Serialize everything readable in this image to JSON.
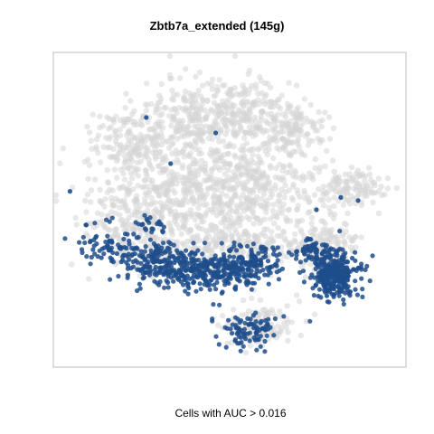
{
  "chart_data": {
    "type": "scatter",
    "title": "Zbtb7a_extended (145g)",
    "xlabel": "Cells with AUC > 0.016",
    "ylabel": "",
    "grid": false,
    "legend": "none",
    "colors": {
      "background_cells": "#d6d6d6",
      "auc_cells": "#1f4e8c",
      "frame": "#bdbdbd"
    },
    "series": [
      {
        "role": "background",
        "marker_color": "#d6d6d6",
        "clusters": [
          {
            "cx": 0.22,
            "cy": 0.28,
            "sx": 0.06,
            "sy": 0.06,
            "n": 180
          },
          {
            "cx": 0.4,
            "cy": 0.2,
            "sx": 0.07,
            "sy": 0.06,
            "n": 240
          },
          {
            "cx": 0.55,
            "cy": 0.18,
            "sx": 0.06,
            "sy": 0.05,
            "n": 160
          },
          {
            "cx": 0.68,
            "cy": 0.23,
            "sx": 0.05,
            "sy": 0.05,
            "n": 140
          },
          {
            "cx": 0.36,
            "cy": 0.44,
            "sx": 0.12,
            "sy": 0.08,
            "n": 420
          },
          {
            "cx": 0.58,
            "cy": 0.42,
            "sx": 0.1,
            "sy": 0.08,
            "n": 320
          },
          {
            "cx": 0.2,
            "cy": 0.55,
            "sx": 0.06,
            "sy": 0.08,
            "n": 150
          },
          {
            "cx": 0.5,
            "cy": 0.62,
            "sx": 0.12,
            "sy": 0.05,
            "n": 300
          },
          {
            "cx": 0.85,
            "cy": 0.43,
            "sx": 0.05,
            "sy": 0.03,
            "n": 110
          },
          {
            "cx": 0.78,
            "cy": 0.62,
            "sx": 0.04,
            "sy": 0.05,
            "n": 120
          },
          {
            "cx": 0.58,
            "cy": 0.88,
            "sx": 0.05,
            "sy": 0.04,
            "n": 120
          }
        ]
      },
      {
        "role": "AUC > 0.016",
        "marker_color": "#1f4e8c",
        "clusters": [
          {
            "cx": 0.42,
            "cy": 0.7,
            "sx": 0.09,
            "sy": 0.03,
            "n": 360
          },
          {
            "cx": 0.28,
            "cy": 0.65,
            "sx": 0.05,
            "sy": 0.03,
            "n": 110
          },
          {
            "cx": 0.14,
            "cy": 0.62,
            "sx": 0.04,
            "sy": 0.03,
            "n": 60
          },
          {
            "cx": 0.58,
            "cy": 0.66,
            "sx": 0.04,
            "sy": 0.03,
            "n": 90
          },
          {
            "cx": 0.8,
            "cy": 0.71,
            "sx": 0.035,
            "sy": 0.035,
            "n": 320
          },
          {
            "cx": 0.74,
            "cy": 0.63,
            "sx": 0.03,
            "sy": 0.02,
            "n": 60
          },
          {
            "cx": 0.56,
            "cy": 0.89,
            "sx": 0.04,
            "sy": 0.03,
            "n": 90
          },
          {
            "cx": 0.24,
            "cy": 0.55,
            "sx": 0.05,
            "sy": 0.03,
            "n": 25
          }
        ],
        "outliers": [
          [
            0.26,
            0.2
          ],
          [
            0.46,
            0.25
          ],
          [
            0.33,
            0.35
          ],
          [
            0.04,
            0.44
          ],
          [
            0.82,
            0.46
          ],
          [
            0.75,
            0.5
          ],
          [
            0.87,
            0.47
          ],
          [
            0.78,
            0.78
          ]
        ]
      }
    ]
  }
}
